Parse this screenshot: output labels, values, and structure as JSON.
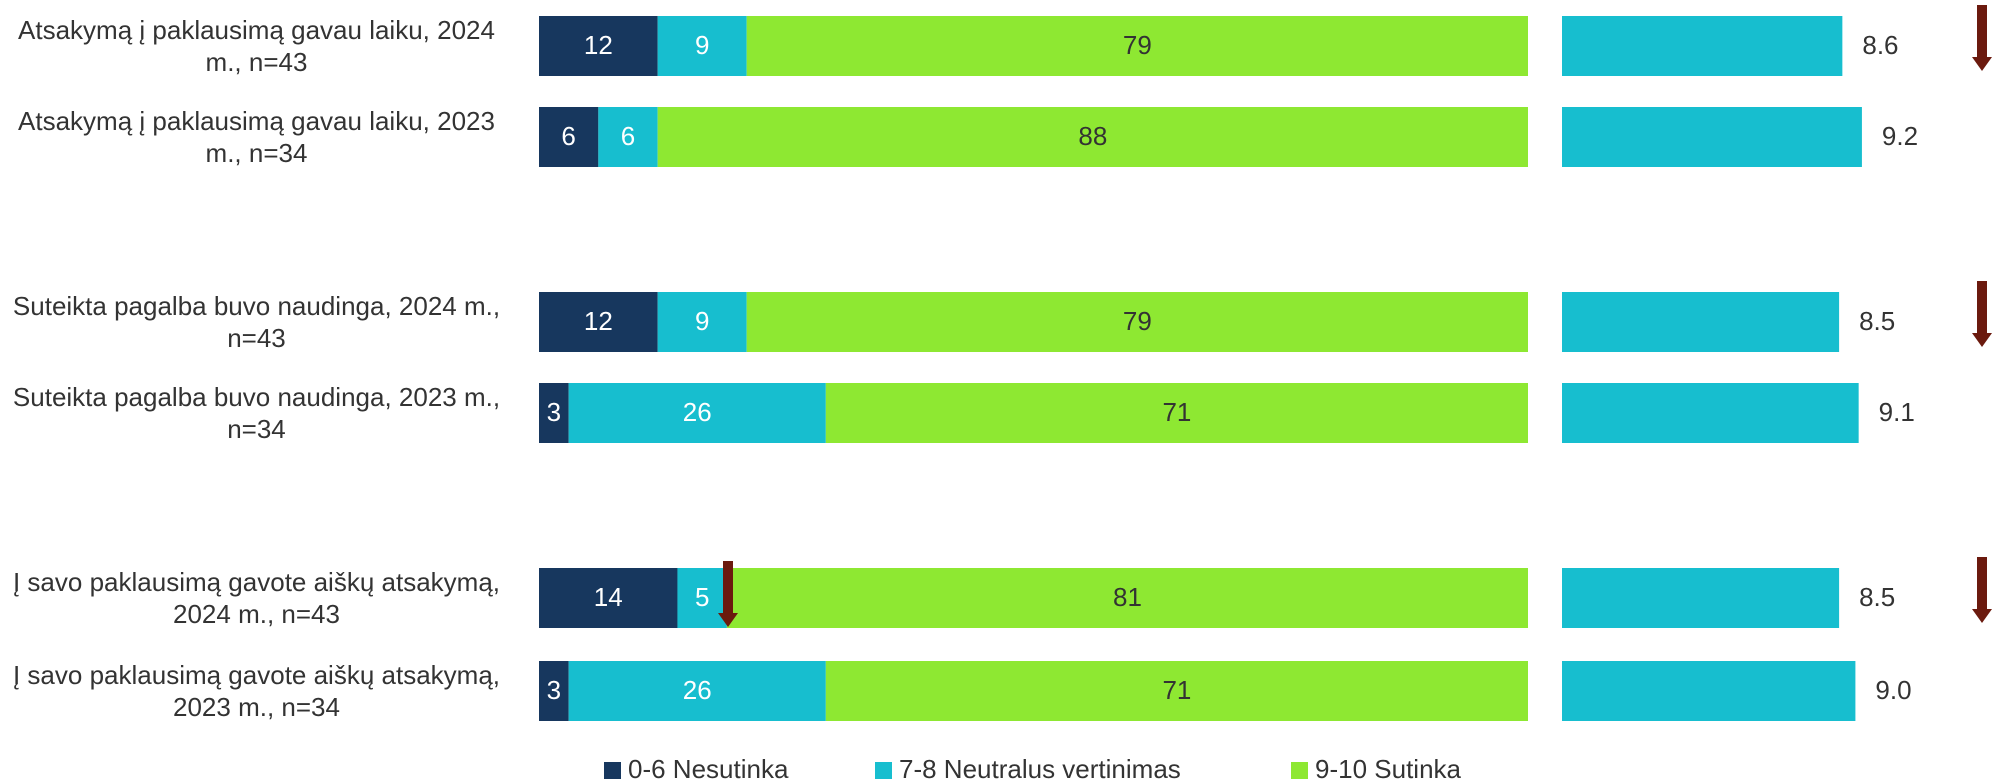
{
  "chart_data": [
    {
      "type": "bar",
      "stacked": true,
      "orientation": "horizontal",
      "categories": [
        "Atsakymą į paklausimą gavau laiku, 2024 m., n=43",
        "Atsakymą į paklausimą gavau laiku, 2023 m., n=34",
        "Suteikta pagalba buvo naudinga, 2024 m., n=43",
        "Suteikta pagalba buvo naudinga, 2023 m., n=34",
        "Į savo paklausimą gavote aiškų atsakymą, 2024 m., n=43",
        "Į savo paklausimą gavote aiškų atsakymą, 2023 m., n=34"
      ],
      "series": [
        {
          "name": "0-6 Nesutinka",
          "color": "#17375e",
          "values": [
            12,
            6,
            12,
            3,
            14,
            3
          ]
        },
        {
          "name": "7-8 Neutralus vertinimas",
          "color": "#17becf",
          "values": [
            9,
            6,
            9,
            26,
            5,
            26
          ]
        },
        {
          "name": "9-10 Sutinka",
          "color": "#8ee832",
          "values": [
            79,
            88,
            79,
            71,
            81,
            71
          ]
        }
      ],
      "xlim": [
        0,
        100
      ],
      "legend": "bottom"
    },
    {
      "type": "bar",
      "orientation": "horizontal",
      "color": "#17becf",
      "values": [
        8.6,
        9.2,
        8.5,
        9.1,
        8.5,
        9.0
      ],
      "value_labels": [
        "8.6",
        "9.2",
        "8.5",
        "9.1",
        "8.5",
        "9.0"
      ],
      "xlim": [
        0,
        10
      ]
    }
  ]
}
